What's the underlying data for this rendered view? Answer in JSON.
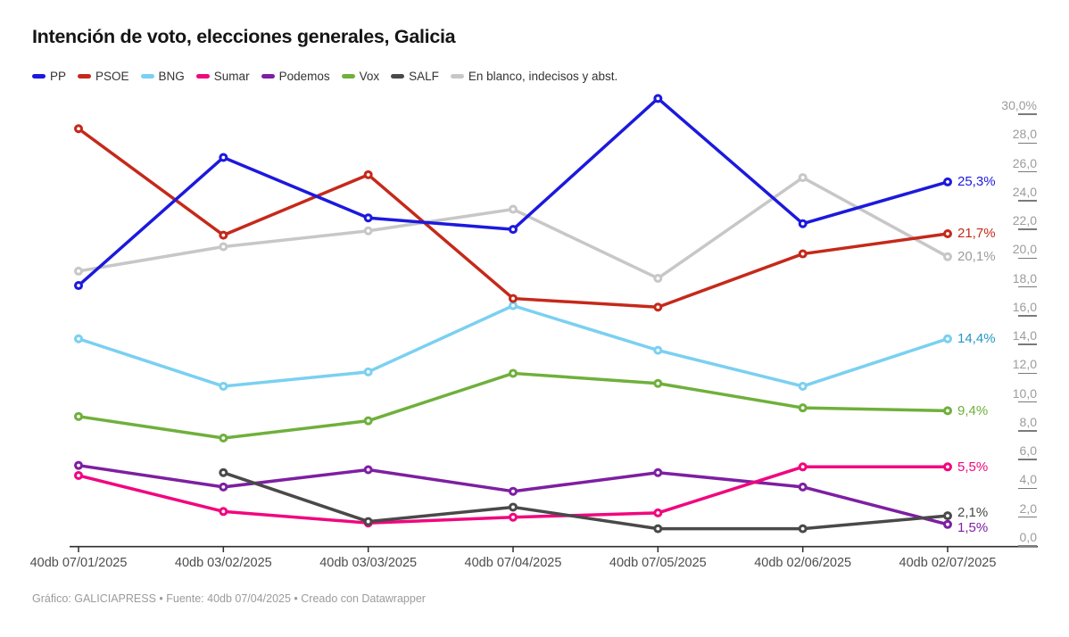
{
  "title": "Intención de voto, elecciones generales, Galicia",
  "footer": "Gráfico: GALICIAPRESS • Fuente: 40db 07/04/2025 • Creado con Datawrapper",
  "chart_data": {
    "type": "line",
    "title": "Intención de voto, elecciones generales, Galicia",
    "x": [
      "40db 07/01/2025",
      "40db 03/02/2025",
      "40db 03/03/2025",
      "40db 07/04/2025",
      "40db 07/05/2025",
      "40db 02/06/2025",
      "40db 02/07/2025"
    ],
    "ylim": [
      0,
      30
    ],
    "y_tick_step": 2,
    "y_tick_labels": [
      "30,0%",
      "28,0",
      "26,0",
      "24,0",
      "22,0",
      "20,0",
      "18,0",
      "16,0",
      "14,0",
      "12,0",
      "10,0",
      "8,0",
      "6,0",
      "4,0",
      "2,0",
      "0,0"
    ],
    "grid": "no horizontal gridlines; tick labels with short underline on right side",
    "legend_position": "top-left",
    "series": [
      {
        "name": "PP",
        "color": "#1c19dd",
        "label_color": "#1c19dd",
        "end_label": "25,3%",
        "values": [
          18.1,
          27.0,
          22.8,
          22.0,
          31.1,
          22.4,
          25.3
        ]
      },
      {
        "name": "PSOE",
        "color": "#c5291a",
        "label_color": "#c5291a",
        "end_label": "21,7%",
        "values": [
          29.0,
          21.6,
          25.8,
          17.2,
          16.6,
          20.3,
          21.7
        ]
      },
      {
        "name": "BNG",
        "color": "#7ad0f1",
        "label_color": "#2496c6",
        "end_label": "14,4%",
        "values": [
          14.4,
          11.1,
          12.1,
          16.7,
          13.6,
          11.1,
          14.4
        ]
      },
      {
        "name": "Sumar",
        "color": "#f1067e",
        "label_color": "#f1067e",
        "end_label": "5,5%",
        "values": [
          4.9,
          2.4,
          1.6,
          2.0,
          2.3,
          5.5,
          5.5
        ]
      },
      {
        "name": "Podemos",
        "color": "#7d1fa2",
        "label_color": "#7d1fa2",
        "end_label": "1,5%",
        "values": [
          5.6,
          4.1,
          5.3,
          3.8,
          5.1,
          4.1,
          1.5
        ]
      },
      {
        "name": "Vox",
        "color": "#6fb03c",
        "label_color": "#6fb03c",
        "end_label": "9,4%",
        "values": [
          9.0,
          7.5,
          8.7,
          12.0,
          11.3,
          9.6,
          9.4
        ]
      },
      {
        "name": "SALF",
        "color": "#494949",
        "label_color": "#494949",
        "end_label": "2,1%",
        "values": [
          null,
          5.1,
          1.7,
          2.7,
          1.2,
          1.2,
          2.1
        ]
      },
      {
        "name": "En blanco, indecisos y abst.",
        "color": "#c7c7c7",
        "label_color": "#9c9c9c",
        "end_label": "20,1%",
        "values": [
          19.1,
          20.8,
          21.9,
          23.4,
          18.6,
          25.6,
          20.1
        ]
      }
    ]
  }
}
